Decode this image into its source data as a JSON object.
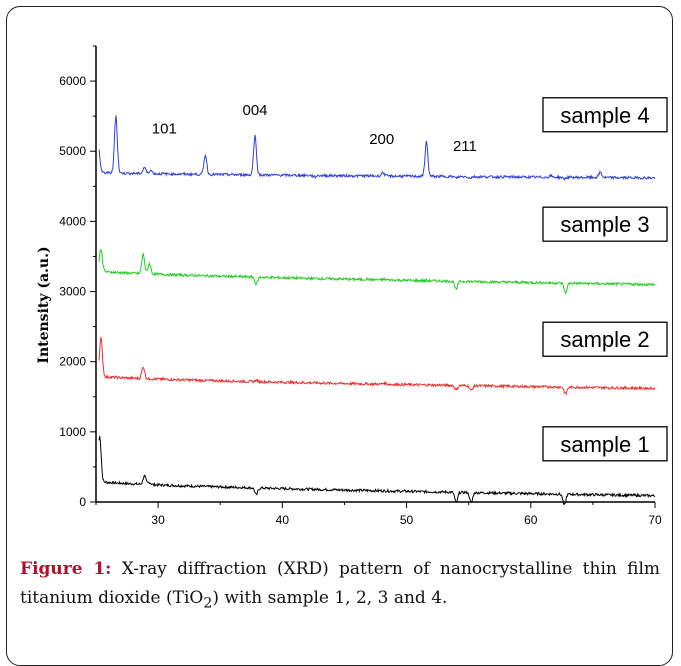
{
  "chart_data": {
    "type": "line",
    "ylabel": "Intensity (a.u.)",
    "xlabel": "",
    "xlim": [
      25,
      70
    ],
    "ylim": [
      0,
      6500
    ],
    "x_ticks": [
      "30",
      "40",
      "50",
      "60",
      "70"
    ],
    "y_ticks": [
      "0",
      "1000",
      "2000",
      "3000",
      "4000",
      "5000",
      "6000"
    ],
    "peak_labels": [
      {
        "text": "101",
        "x": 30.5,
        "y": 5250
      },
      {
        "text": "004",
        "x": 37.8,
        "y": 5520
      },
      {
        "text": "200",
        "x": 48.0,
        "y": 5100
      },
      {
        "text": "211",
        "x": 54.7,
        "y": 5000
      }
    ],
    "series": [
      {
        "name": "sample 1",
        "color": "#000000",
        "baseline": 300,
        "end_baseline": 90,
        "peaks": [
          [
            25.3,
            950
          ],
          [
            28.9,
            420
          ],
          [
            29.3,
            330
          ],
          [
            37.9,
            200
          ],
          [
            48.1,
            300
          ],
          [
            54.0,
            150
          ],
          [
            55.2,
            150
          ],
          [
            62.7,
            140
          ]
        ]
      },
      {
        "name": "sample 2",
        "color": "#e8302e",
        "baseline": 1800,
        "end_baseline": 1620,
        "peaks": [
          [
            25.4,
            2350
          ],
          [
            28.8,
            1970
          ],
          [
            37.9,
            1820
          ],
          [
            48.2,
            1820
          ],
          [
            54.0,
            1740
          ],
          [
            55.2,
            1730
          ],
          [
            62.8,
            1700
          ]
        ]
      },
      {
        "name": "sample 3",
        "color": "#22cc22",
        "baseline": 3300,
        "end_baseline": 3100,
        "peaks": [
          [
            25.4,
            3620
          ],
          [
            28.8,
            3580
          ],
          [
            29.3,
            3450
          ],
          [
            37.9,
            3200
          ],
          [
            46.8,
            3310
          ],
          [
            48.2,
            3310
          ],
          [
            54.0,
            3180
          ],
          [
            62.8,
            3160
          ]
        ]
      },
      {
        "name": "sample 4",
        "color": "#2f3fd8",
        "baseline": 4700,
        "end_baseline": 4620,
        "peaks": [
          [
            25.2,
            5060
          ],
          [
            26.6,
            5520
          ],
          [
            28.9,
            4790
          ],
          [
            29.4,
            4750
          ],
          [
            33.8,
            4980
          ],
          [
            37.8,
            5260
          ],
          [
            42.6,
            4680
          ],
          [
            48.1,
            4750
          ],
          [
            51.6,
            5190
          ],
          [
            54.0,
            4680
          ],
          [
            55.1,
            4680
          ],
          [
            61.6,
            4720
          ],
          [
            65.6,
            4780
          ],
          [
            62.7,
            4680
          ]
        ]
      }
    ],
    "sample_boxes": [
      {
        "text": "sample 4",
        "y": 5520
      },
      {
        "text": "sample 3",
        "y": 3960
      },
      {
        "text": "sample 2",
        "y": 2320
      },
      {
        "text": "sample 1",
        "y": 830
      }
    ]
  },
  "caption": {
    "label": "Figure 1:",
    "text_part1": " X-ray diffraction (XRD) pattern of nanocrystalline thin film titanium dioxide (TiO",
    "subscript": "2",
    "text_part2": ") with sample 1, 2, 3 and 4."
  }
}
